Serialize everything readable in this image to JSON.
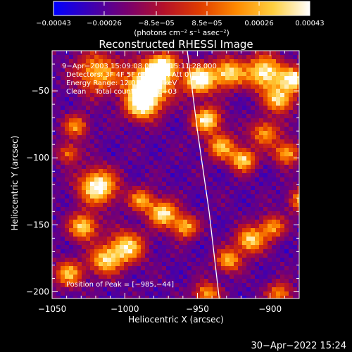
{
  "chart_data": {
    "type": "heatmap",
    "title": "Reconstructed RHESSI Image",
    "xlabel": "Heliocentric X (arcsec)",
    "ylabel": "Heliocentric Y (arcsec)",
    "xlim": [
      -1050,
      -880
    ],
    "ylim": [
      -205,
      -20
    ],
    "x_ticks": [
      -1050,
      -1000,
      -950,
      -900
    ],
    "x_tick_labels": [
      "−1050",
      "−1000",
      "−950",
      "−900"
    ],
    "y_ticks": [
      -50,
      -100,
      -150,
      -200
    ],
    "y_tick_labels": [
      "−50",
      "−100",
      "−150",
      "−200"
    ],
    "colorbar": {
      "range": [
        -0.00043,
        0.00043
      ],
      "ticks": [
        -0.00043,
        -0.00026,
        -8.5e-05,
        8.5e-05,
        0.00026,
        0.00043
      ],
      "tick_labels": [
        "−0.00043",
        "−0.00026",
        "−8.5e−05",
        "8.5e−05",
        "0.00026",
        "0.00043"
      ],
      "units_label": "(photons cm⁻² s⁻¹ asec⁻²)",
      "stops": [
        "#0000ff",
        "#3c00b4",
        "#780070",
        "#b4102a",
        "#e03c00",
        "#ff8a00",
        "#ffd040",
        "#ffffff"
      ]
    },
    "annotations": [
      "9−Apr−2003 15:09:08.000 to 15:11:28.000",
      "Detectors: 3F 4F 5F 6F 7F 8F, Att 0",
      "Energy Range: 12.0 − 25.0 keV",
      "Clean    Total counts: 1.27E+03"
    ],
    "peak_label": "Position of Peak = [−985,−44]",
    "limb_curve": [
      [
        -957,
        -20
      ],
      [
        -950,
        -80
      ],
      [
        -942,
        -140
      ],
      [
        -935,
        -205
      ]
    ],
    "limb_color": "#ffffff"
  },
  "footer": {
    "timestamp": "30−Apr−2022 15:24"
  }
}
